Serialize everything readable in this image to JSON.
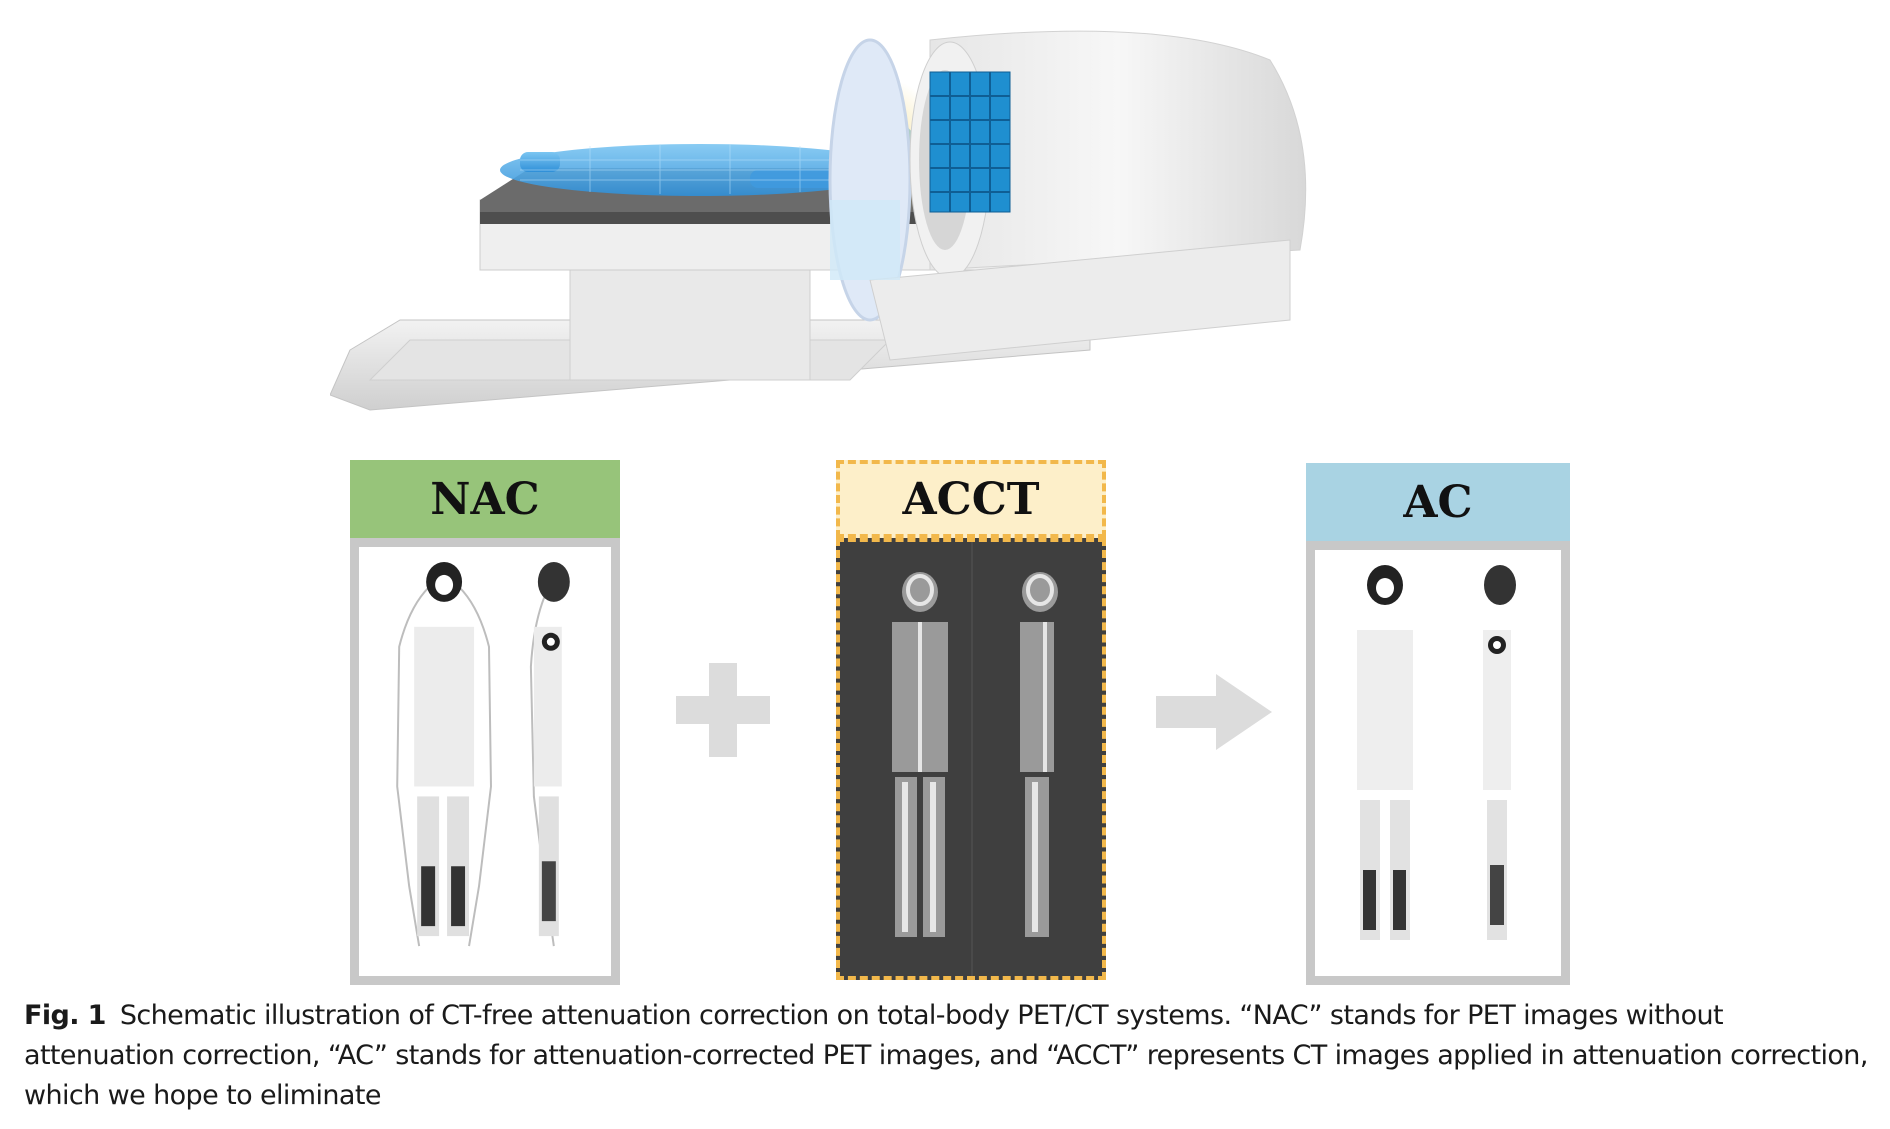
{
  "panels": {
    "nac": {
      "label": "NAC"
    },
    "acct": {
      "label": "ACCT"
    },
    "ac": {
      "label": "AC"
    }
  },
  "operators": {
    "plus": "plus-icon",
    "arrow": "arrow-right-icon"
  },
  "caption": {
    "label": "Fig. 1",
    "text": "Schematic illustration of CT-free attenuation correction on total-body PET/CT systems. “NAC” stands for PET images without attenuation correction, “AC” stands for attenuation-corrected PET images, and “ACCT” represents CT images applied in attenuation correction, which we hope to eliminate"
  },
  "colors": {
    "nac_header": "#97c47a",
    "acct_header": "#fdefc9",
    "acct_border": "#f2b84b",
    "ac_header": "#a9d3e3",
    "patient": "#4fa8e0",
    "detector": "#1f8fd0"
  }
}
